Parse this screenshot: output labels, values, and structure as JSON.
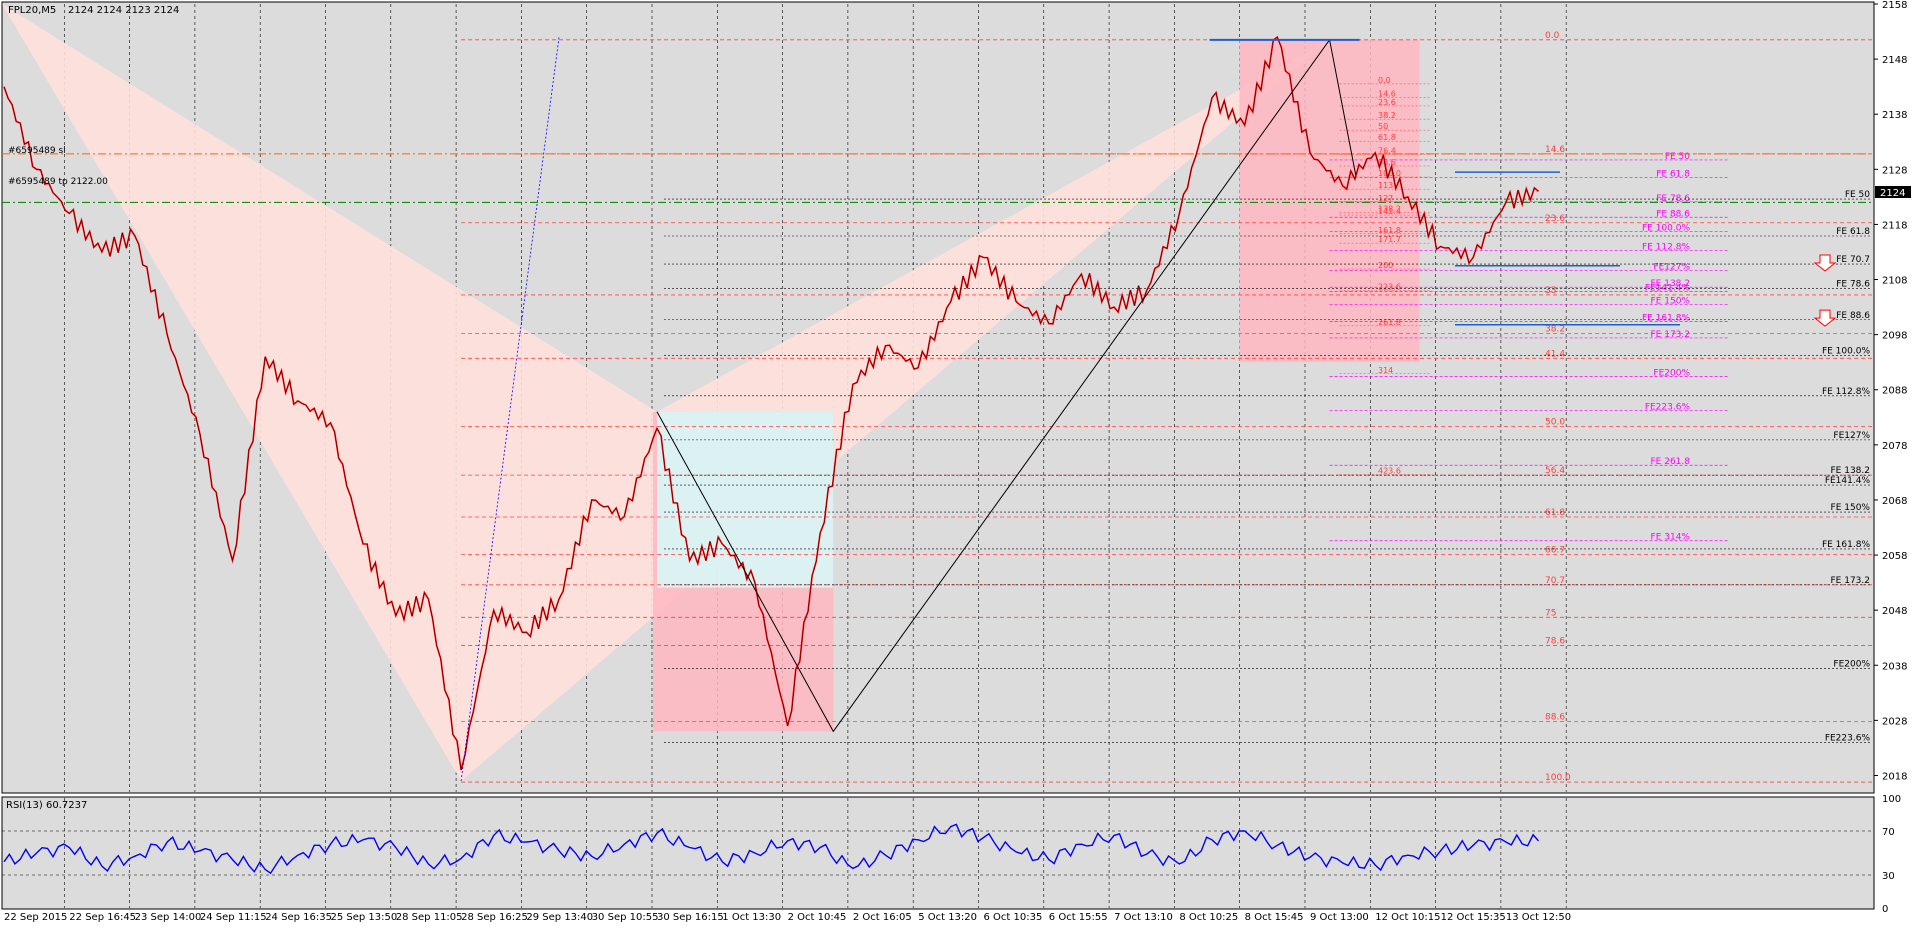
{
  "window": {
    "symbol_label": "FPL20,M5",
    "ohlc_label": "2124 2124 2123 2124",
    "indicator_label": "RSI(13) 60.7237",
    "object_label_1": "#6595489 sl",
    "object_label_2": "#6595489 tp 2122.00",
    "last_price": "2124"
  },
  "colors": {
    "background": "#dcdcdc",
    "candle": "#ff0000",
    "rsi_line": "#0000ff",
    "fib_line": "#ff4040",
    "fe_line": "#ff00ff",
    "wedge_fill": "#ffe0dc",
    "box_pink": "#ffb6c1",
    "box_cyan": "#d8f6f6"
  },
  "chart_data": {
    "type": "line",
    "title": "",
    "xlabel": "",
    "ylabel": "",
    "price_axis": {
      "ylim": [
        2015,
        2158
      ],
      "ticks": [
        2018,
        2028,
        2038,
        2048,
        2058,
        2068,
        2078,
        2088,
        2098,
        2108,
        2118,
        2128,
        2138,
        2148,
        2158
      ]
    },
    "time_axis": {
      "labels": [
        "22 Sep 2015",
        "22 Sep 16:45",
        "23 Sep 14:00",
        "24 Sep 11:15",
        "24 Sep 16:35",
        "25 Sep 13:50",
        "28 Sep 11:05",
        "28 Sep 16:25",
        "29 Sep 13:40",
        "30 Sep 10:55",
        "30 Sep 16:15",
        "1 Oct 13:30",
        "2 Oct 10:45",
        "2 Oct 16:05",
        "5 Oct 13:20",
        "6 Oct 10:35",
        "6 Oct 15:55",
        "7 Oct 13:10",
        "8 Oct 10:25",
        "8 Oct 15:45",
        "9 Oct 13:00",
        "12 Oct 10:15",
        "12 Oct 15:35",
        "13 Oct 12:50"
      ]
    },
    "grid": true,
    "series": [
      {
        "kind": "price",
        "x_index": [
          0,
          0.5,
          1,
          1.5,
          2,
          2.5,
          3,
          3.5,
          4,
          4.5,
          5,
          5.5,
          6,
          6.5,
          7,
          7.5,
          8,
          8.5,
          9,
          9.5,
          10,
          10.5,
          11,
          11.5,
          12,
          12.5,
          13,
          13.5,
          14,
          14.5,
          15,
          15.5,
          16,
          16.5,
          17,
          17.5,
          18,
          18.5,
          19,
          19.5,
          20,
          20.5,
          21,
          21.5,
          22,
          22.5,
          23,
          23.5
        ],
        "values": [
          2143,
          2128,
          2120,
          2113,
          2116,
          2098,
          2080,
          2057,
          2094,
          2086,
          2082,
          2060,
          2047,
          2050,
          2019,
          2048,
          2044,
          2050,
          2068,
          2065,
          2081,
          2057,
          2060,
          2053,
          2027,
          2062,
          2089,
          2096,
          2092,
          2104,
          2112,
          2104,
          2100,
          2109,
          2103,
          2106,
          2120,
          2141,
          2136,
          2152,
          2131,
          2125,
          2131,
          2123,
          2114,
          2112,
          2122,
          2124
        ]
      }
    ],
    "rsi": {
      "name": "RSI(13)",
      "last_value": 60.7237,
      "ylim": [
        0,
        100
      ],
      "ticks": [
        0,
        30,
        70,
        100
      ],
      "levels": [
        30,
        70
      ],
      "values": [
        42,
        50,
        55,
        38,
        47,
        60,
        52,
        44,
        35,
        48,
        58,
        62,
        55,
        40,
        45,
        66,
        60,
        52,
        47,
        58,
        68,
        55,
        42,
        50,
        61,
        55,
        36,
        48,
        62,
        74,
        64,
        51,
        44,
        58,
        66,
        49,
        40,
        62,
        70,
        57,
        46,
        41,
        39,
        48,
        52,
        57,
        60,
        61
      ]
    },
    "fib_retracement": {
      "levels": [
        "0.0",
        "14.6",
        "23.6",
        "33",
        "38.2",
        "41.4",
        "50.0",
        "56.4",
        "61.8",
        "66.7",
        "70.7",
        "75",
        "78.6",
        "88.6",
        "100.0"
      ],
      "prices": [
        2151.5,
        2130.8,
        2118.3,
        2105.2,
        2098.2,
        2093.7,
        2081.3,
        2072.5,
        2064.9,
        2058.1,
        2052.6,
        2046.7,
        2041.6,
        2027.8,
        2016.8
      ]
    },
    "fe_levels_pink": {
      "labels": [
        "FE 50",
        "FE 61.8",
        "FE 78.6",
        "FE 88.6",
        "FE 100.0%",
        "FE 112.8%",
        "FE127%",
        "FE 138.2",
        "FE141.4%",
        "FE 150%",
        "FE 161.8%",
        "FE 173.2",
        "FE200%",
        "FE223.6%",
        "FE 261.8",
        "FE 314%"
      ],
      "prices": [
        2129.7,
        2126.5,
        2122.1,
        2119.3,
        2116.7,
        2113.3,
        2109.6,
        2106.6,
        2105.8,
        2103.5,
        2100.4,
        2097.4,
        2090.4,
        2084.2,
        2074.3,
        2060.6
      ]
    },
    "fe_levels_right": {
      "labels": [
        "FE 50",
        "FE 61.8",
        "FE 70.7",
        "FE 78.6",
        "FE 88.6",
        "FE 100.0%",
        "FE 112.8%",
        "FE127%",
        "FE 138.2",
        "FE141.4%",
        "FE 150%",
        "FE 161.8%",
        "FE 173.2",
        "FE200%",
        "FE223.6%"
      ],
      "prices": [
        2122.6,
        2115.9,
        2110.8,
        2106.4,
        2100.7,
        2094.2,
        2086.9,
        2078.9,
        2072.5,
        2070.7,
        2065.8,
        2059.1,
        2052.6,
        2037.4,
        2024.0
      ]
    },
    "small_fib": {
      "levels": [
        "0.0",
        "14.6",
        "23.6",
        "38.2",
        "50",
        "61.8",
        "76.4",
        "88.6",
        "100.0",
        "113",
        "127",
        "138.2",
        "141.4",
        "161.8",
        "171.7",
        "200",
        "223.6",
        "261.8",
        "314",
        "423.6"
      ],
      "prices": [
        2143.5,
        2141.0,
        2139.5,
        2137.1,
        2135.1,
        2133.1,
        2130.7,
        2128.6,
        2126.6,
        2124.4,
        2122.1,
        2120.2,
        2119.7,
        2116.3,
        2114.6,
        2109.9,
        2106.0,
        2099.6,
        2090.9,
        2072.6
      ]
    },
    "pattern_points": [
      {
        "x_index": 10.0,
        "price": 2084
      },
      {
        "x_index": 12.7,
        "price": 2026
      },
      {
        "x_index": 20.3,
        "price": 2151.5
      },
      {
        "x_index": 20.7,
        "price": 2127
      }
    ],
    "markers": {
      "sl_price": 2130.8,
      "tp_price": 2122.0,
      "arrows": [
        "down",
        "down"
      ]
    }
  }
}
